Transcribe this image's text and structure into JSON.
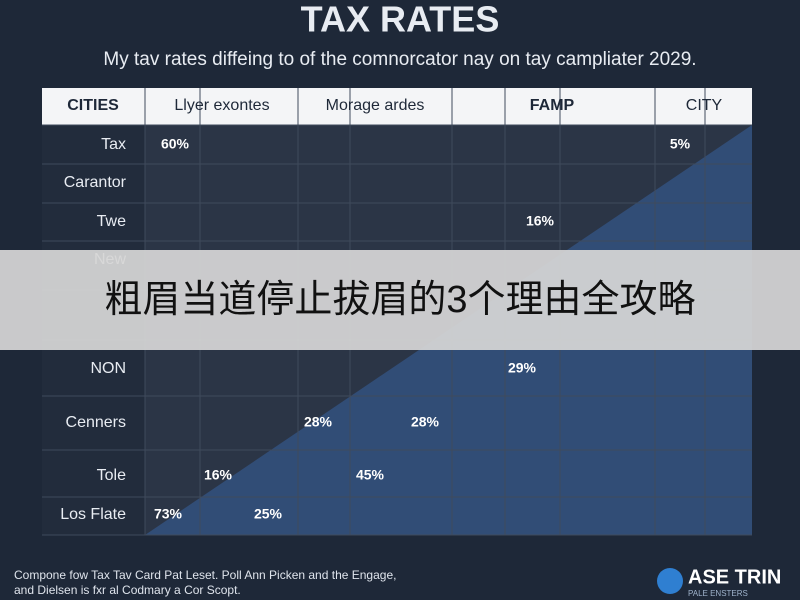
{
  "header": {
    "title": "TAX RATES",
    "subtitle": "My tav rates diffeing to of the comnorcator nay on tay campliater 2029."
  },
  "table": {
    "columns": [
      "CITIES",
      "Llyer exontes",
      "Morage ardes",
      "FAMP",
      "CITY"
    ],
    "rows": [
      {
        "label": "Tax",
        "values": [
          "60%",
          "5%"
        ]
      },
      {
        "label": "Carantor",
        "values": []
      },
      {
        "label": "Twe",
        "values": [
          "16%"
        ]
      },
      {
        "label": "New",
        "values": []
      },
      {
        "label": "NON",
        "values": [
          "29%"
        ]
      },
      {
        "label": "Cenners",
        "values": [
          "28%",
          "28%"
        ]
      },
      {
        "label": "Tole",
        "values": [
          "16%",
          "45%"
        ]
      },
      {
        "label": "Los Flate",
        "values": [
          "73%",
          "25%"
        ]
      }
    ]
  },
  "banner": {
    "text": "粗眉当道停止拔眉的3个理由全攻略"
  },
  "footer": {
    "lines": [
      "Compone fow Tax Tav Card Pat Leset. Poll Ann Picken and the Engage,",
      "and Dielsen is fxr al Codmary a Cor Scopt."
    ],
    "logo": {
      "name": "ASE TRIN",
      "tagline": "PALE ENSTERS"
    }
  }
}
